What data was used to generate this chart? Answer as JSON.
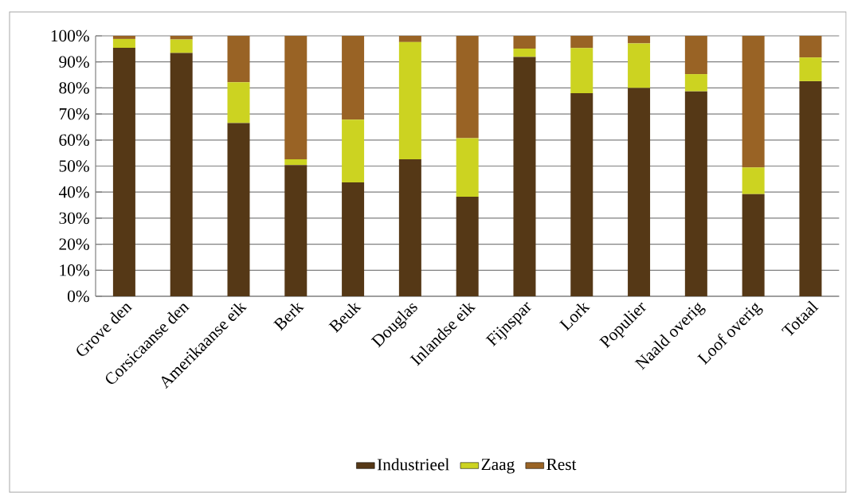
{
  "chart_data": {
    "type": "bar",
    "stacked": true,
    "categories": [
      "Grove den",
      "Corsicaanse den",
      "Amerikaanse eik",
      "Berk",
      "Beuk",
      "Douglas",
      "Inlandse eik",
      "Fijnspar",
      "Lork",
      "Populier",
      "Naald overig",
      "Loof overig",
      "Totaal"
    ],
    "series": [
      {
        "name": "Industrieel",
        "color": "#553816",
        "values": [
          95.4,
          93.4,
          66.5,
          50.4,
          43.7,
          52.6,
          38.2,
          91.9,
          78.0,
          80.0,
          78.7,
          39.2,
          82.6
        ]
      },
      {
        "name": "Zaag",
        "color": "#ccd321",
        "values": [
          3.4,
          5.2,
          15.7,
          2.2,
          24.1,
          45.0,
          22.5,
          3.2,
          17.3,
          17.1,
          6.6,
          10.3,
          9.1
        ]
      },
      {
        "name": "Rest",
        "color": "#996325",
        "values": [
          1.2,
          1.4,
          17.8,
          47.4,
          32.2,
          2.4,
          39.3,
          4.9,
          4.7,
          2.9,
          14.7,
          50.5,
          8.3
        ]
      }
    ],
    "ylim": [
      0,
      100
    ],
    "yticks": [
      {
        "value": 0,
        "label": "0%"
      },
      {
        "value": 10,
        "label": "10%"
      },
      {
        "value": 20,
        "label": "20%"
      },
      {
        "value": 30,
        "label": "30%"
      },
      {
        "value": 40,
        "label": "40%"
      },
      {
        "value": 50,
        "label": "50%"
      },
      {
        "value": 60,
        "label": "60%"
      },
      {
        "value": 70,
        "label": "70%"
      },
      {
        "value": 80,
        "label": "80%"
      },
      {
        "value": 90,
        "label": "90%"
      },
      {
        "value": 100,
        "label": "100%"
      }
    ],
    "grid": "y",
    "legend": "bottom"
  }
}
